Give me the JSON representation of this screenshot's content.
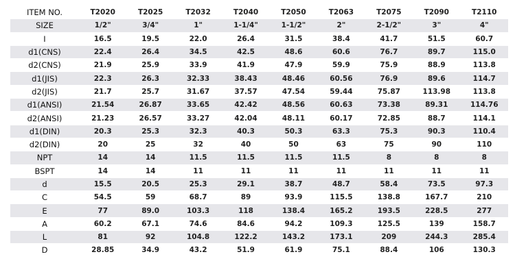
{
  "table": {
    "header": [
      "ITEM NO.",
      "T2020",
      "T2025",
      "T2032",
      "T2040",
      "T2050",
      "T2063",
      "T2075",
      "T2090",
      "T2110"
    ],
    "rows": [
      [
        "SIZE",
        "1/2\"",
        "3/4\"",
        "1\"",
        "1-1/4\"",
        "1-1/2\"",
        "2\"",
        "2-1/2\"",
        "3\"",
        "4\""
      ],
      [
        "I",
        "16.5",
        "19.5",
        "22.0",
        "26.4",
        "31.5",
        "38.4",
        "41.7",
        "51.5",
        "60.7"
      ],
      [
        "d1(CNS)",
        "22.4",
        "26.4",
        "34.5",
        "42.5",
        "48.6",
        "60.6",
        "76.7",
        "89.7",
        "115.0"
      ],
      [
        "d2(CNS)",
        "21.9",
        "25.9",
        "33.9",
        "41.9",
        "47.9",
        "59.9",
        "75.9",
        "88.9",
        "113.8"
      ],
      [
        "d1(JIS)",
        "22.3",
        "26.3",
        "32.33",
        "38.43",
        "48.46",
        "60.56",
        "76.9",
        "89.6",
        "114.7"
      ],
      [
        "d2(JIS)",
        "21.7",
        "25.7",
        "31.67",
        "37.57",
        "47.54",
        "59.44",
        "75.87",
        "113.98",
        "113.8"
      ],
      [
        "d1(ANSI)",
        "21.54",
        "26.87",
        "33.65",
        "42.42",
        "48.56",
        "60.63",
        "73.38",
        "89.31",
        "114.76"
      ],
      [
        "d2(ANSI)",
        "21.23",
        "26.57",
        "33.27",
        "42.04",
        "48.11",
        "60.17",
        "72.85",
        "88.7",
        "114.1"
      ],
      [
        "d1(DIN)",
        "20.3",
        "25.3",
        "32.3",
        "40.3",
        "50.3",
        "63.3",
        "75.3",
        "90.3",
        "110.4"
      ],
      [
        "d2(DIN)",
        "20",
        "25",
        "32",
        "40",
        "50",
        "63",
        "75",
        "90",
        "110"
      ],
      [
        "NPT",
        "14",
        "14",
        "11.5",
        "11.5",
        "11.5",
        "11.5",
        "8",
        "8",
        "8"
      ],
      [
        "BSPT",
        "14",
        "14",
        "11",
        "11",
        "11",
        "11",
        "11",
        "11",
        "11"
      ],
      [
        "d",
        "15.5",
        "20.5",
        "25.3",
        "29.1",
        "38.7",
        "48.7",
        "58.4",
        "73.5",
        "97.3"
      ],
      [
        "C",
        "54.5",
        "59",
        "68.7",
        "89",
        "93.9",
        "115.5",
        "138.8",
        "167.7",
        "210"
      ],
      [
        "E",
        "77",
        "89.0",
        "103.3",
        "118",
        "138.4",
        "165.2",
        "193.5",
        "228.5",
        "277"
      ],
      [
        "A",
        "60.2",
        "67.1",
        "74.6",
        "84.6",
        "94.2",
        "109.3",
        "125.5",
        "139",
        "158.7"
      ],
      [
        "L",
        "81",
        "92",
        "104.8",
        "122.2",
        "143.2",
        "173.1",
        "209",
        "244.3",
        "285.4"
      ],
      [
        "D",
        "28.85",
        "34.9",
        "43.2",
        "51.9",
        "61.9",
        "75.1",
        "88.4",
        "106",
        "130.3"
      ]
    ]
  }
}
